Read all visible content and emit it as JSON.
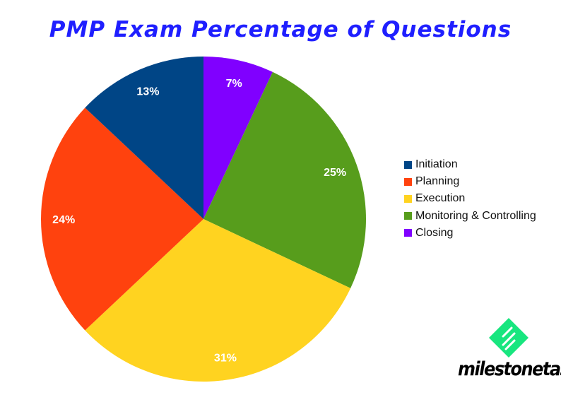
{
  "chart_data": {
    "type": "pie",
    "title": "PMP Exam Percentage of Questions",
    "start_angle": "12 o'clock, clockwise",
    "legend_position": "right",
    "slices": [
      {
        "name": "Closing",
        "value": 7,
        "label": "7%",
        "color": "#8000ff"
      },
      {
        "name": "Monitoring & Controlling",
        "value": 25,
        "label": "25%",
        "color": "#579d1c"
      },
      {
        "name": "Execution",
        "value": 31,
        "label": "31%",
        "color": "#ffd320"
      },
      {
        "name": "Planning",
        "value": 24,
        "label": "24%",
        "color": "#ff420e"
      },
      {
        "name": "Initiation",
        "value": 13,
        "label": "13%",
        "color": "#004586"
      }
    ],
    "legend_order": [
      "Initiation",
      "Planning",
      "Execution",
      "Monitoring & Controlling",
      "Closing"
    ]
  },
  "logo": {
    "text": "milestonetask",
    "color": "#18e67f"
  }
}
